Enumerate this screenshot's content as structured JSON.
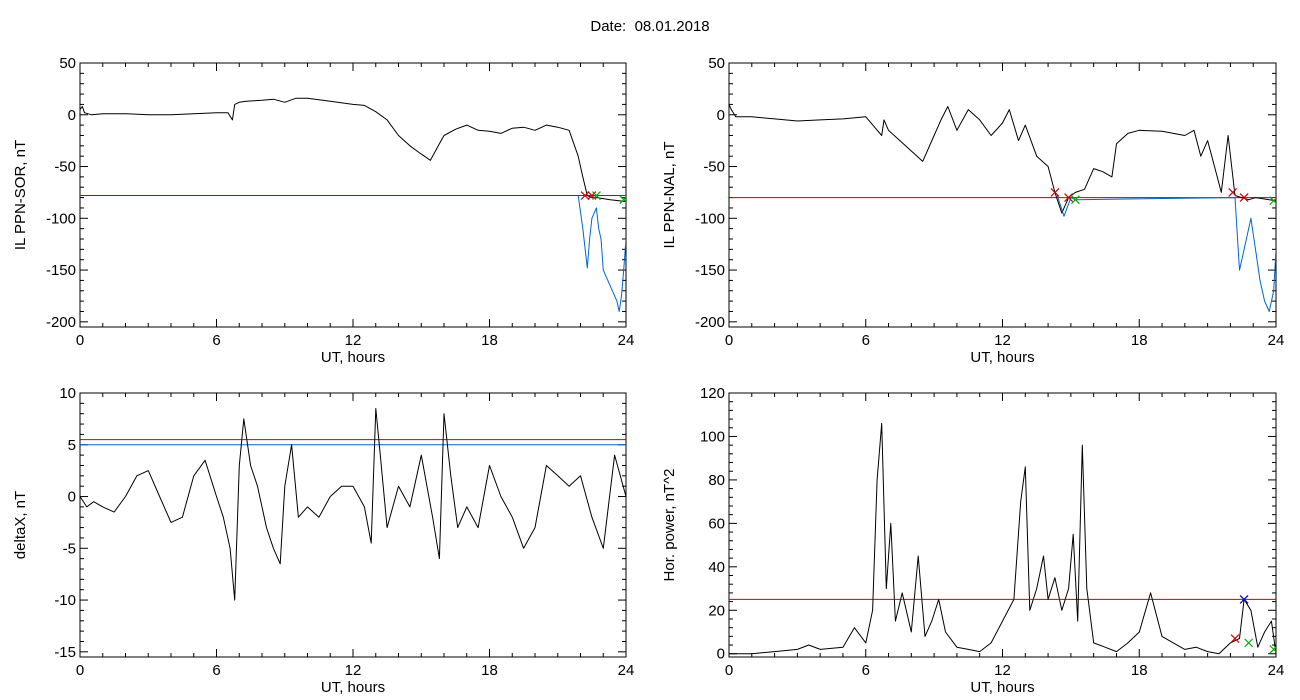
{
  "header": {
    "date_label": "Date:",
    "date_value": "08.01.2018"
  },
  "chart_data": [
    {
      "type": "line",
      "ylabel": "IL PPN-SOR, nT",
      "xlabel": "UT, hours",
      "xlim": [
        0,
        24
      ],
      "ylim": [
        -205,
        50
      ],
      "xticks": [
        0,
        6,
        12,
        18,
        24
      ],
      "yticks": [
        50,
        0,
        -50,
        -100,
        -150,
        -200
      ],
      "threshold": {
        "value": -78,
        "color": "#cc0000"
      },
      "series": [
        {
          "color": "#000000",
          "x": [
            0,
            0.1,
            0.2,
            0.5,
            1,
            2,
            3,
            4,
            5,
            6,
            6.5,
            6.7,
            6.8,
            7,
            7.3,
            8,
            8.5,
            9,
            9.5,
            10,
            11,
            12,
            12.5,
            13,
            13.5,
            14,
            14.5,
            15,
            15.4,
            15.8,
            16,
            16.5,
            17,
            17.5,
            18,
            18.5,
            19,
            19.5,
            20,
            20.5,
            21,
            21.5,
            21.9,
            22.1,
            22.3,
            22.5,
            22.7,
            23,
            23.3,
            23.7,
            24
          ],
          "y": [
            5,
            8,
            2,
            0,
            1,
            1,
            0,
            0,
            1,
            2,
            2,
            -5,
            10,
            12,
            13,
            14,
            15,
            12,
            16,
            16,
            13,
            10,
            9,
            3,
            -5,
            -20,
            -30,
            -38,
            -44,
            -28,
            -20,
            -14,
            -10,
            -15,
            -16,
            -18,
            -13,
            -12,
            -15,
            -10,
            -12,
            -15,
            -40,
            -60,
            -78,
            -80,
            -80,
            -81,
            -82,
            -83,
            -84
          ]
        },
        {
          "color": "#0066cc",
          "x": [
            21.9,
            22.1,
            22.3,
            22.4,
            22.5,
            22.7,
            22.8,
            22.9,
            23.0,
            23.2,
            23.4,
            23.6,
            23.7,
            23.8,
            23.9,
            24.0
          ],
          "y": [
            -78,
            -110,
            -148,
            -120,
            -100,
            -90,
            -110,
            -120,
            -150,
            -160,
            -170,
            -180,
            -190,
            -175,
            -150,
            -120
          ]
        }
      ],
      "markers": [
        {
          "x": 22.2,
          "y": -78,
          "color": "#cc0000"
        },
        {
          "x": 22.5,
          "y": -78,
          "color": "#cc0000"
        },
        {
          "x": 22.7,
          "y": -78,
          "color": "#00aa00"
        },
        {
          "x": 23.9,
          "y": -82,
          "color": "#00aa00"
        }
      ]
    },
    {
      "type": "line",
      "ylabel": "IL PPN-NAL, nT",
      "xlabel": "UT, hours",
      "xlim": [
        0,
        24
      ],
      "ylim": [
        -205,
        50
      ],
      "xticks": [
        0,
        6,
        12,
        18,
        24
      ],
      "yticks": [
        50,
        0,
        -50,
        -100,
        -150,
        -200
      ],
      "threshold": {
        "value": -80,
        "color": "#cc0000"
      },
      "series": [
        {
          "color": "#000000",
          "x": [
            0,
            0.1,
            0.3,
            1,
            2,
            3,
            4,
            5,
            6,
            6.7,
            6.8,
            7,
            7.5,
            8,
            8.5,
            9,
            9.3,
            9.6,
            10,
            10.5,
            11,
            11.5,
            12,
            12.3,
            12.7,
            13,
            13.5,
            14,
            14.3,
            14.6,
            14.9,
            15.2,
            15.6,
            16,
            16.4,
            16.8,
            17,
            17.5,
            18,
            19,
            19.5,
            20,
            20.4,
            20.7,
            21,
            21.3,
            21.6,
            21.9,
            22.2,
            22.5,
            22.8,
            23.1,
            23.4,
            23.7,
            24
          ],
          "y": [
            10,
            5,
            -2,
            -2,
            -4,
            -6,
            -5,
            -4,
            -2,
            -20,
            -5,
            -15,
            -25,
            -35,
            -45,
            -20,
            -5,
            8,
            -15,
            5,
            -5,
            -20,
            -8,
            5,
            -25,
            -10,
            -40,
            -50,
            -75,
            -95,
            -80,
            -75,
            -72,
            -52,
            -55,
            -60,
            -28,
            -18,
            -15,
            -16,
            -18,
            -20,
            -15,
            -40,
            -25,
            -50,
            -75,
            -20,
            -78,
            -80,
            -82,
            -80,
            -81,
            -82,
            -83
          ]
        },
        {
          "color": "#0066cc",
          "x": [
            14.4,
            14.7,
            15.0,
            15.2,
            22.2,
            22.4,
            22.7,
            22.9,
            23.1,
            23.3,
            23.5,
            23.7,
            23.9,
            24.0
          ],
          "y": [
            -78,
            -98,
            -80,
            -82,
            -80,
            -150,
            -120,
            -100,
            -130,
            -160,
            -180,
            -190,
            -170,
            -130
          ]
        }
      ],
      "markers": [
        {
          "x": 14.3,
          "y": -75,
          "color": "#cc0000"
        },
        {
          "x": 14.9,
          "y": -80,
          "color": "#cc0000"
        },
        {
          "x": 15.2,
          "y": -82,
          "color": "#00aa00"
        },
        {
          "x": 22.1,
          "y": -75,
          "color": "#cc0000"
        },
        {
          "x": 22.6,
          "y": -80,
          "color": "#cc0000"
        },
        {
          "x": 23.9,
          "y": -83,
          "color": "#00aa00"
        }
      ]
    },
    {
      "type": "line",
      "ylabel": "deltaX, nT",
      "xlabel": "UT, hours",
      "xlim": [
        0,
        24
      ],
      "ylim": [
        -15.5,
        10
      ],
      "xticks": [
        0,
        6,
        12,
        18,
        24
      ],
      "yticks": [
        10,
        5,
        0,
        -5,
        -10,
        -15
      ],
      "thresholds": [
        {
          "value": 5.5,
          "color": "#cc0000"
        },
        {
          "value": 5.0,
          "color": "#0066cc"
        }
      ],
      "series": [
        {
          "color": "#000000",
          "x": [
            0,
            0.3,
            0.6,
            1,
            1.5,
            2,
            2.5,
            3,
            3.5,
            4,
            4.5,
            5,
            5.5,
            6,
            6.3,
            6.6,
            6.8,
            7.0,
            7.2,
            7.5,
            7.8,
            8.2,
            8.5,
            8.8,
            9,
            9.3,
            9.6,
            10,
            10.5,
            11,
            11.5,
            12,
            12.5,
            12.8,
            13,
            13.2,
            13.5,
            14,
            14.5,
            15,
            15.5,
            15.8,
            16,
            16.3,
            16.6,
            17,
            17.5,
            18,
            18.5,
            19,
            19.5,
            20,
            20.5,
            21,
            21.5,
            22,
            22.5,
            23,
            23.5,
            24
          ],
          "y": [
            0,
            -1,
            -0.5,
            -1,
            -1.5,
            0,
            2,
            2.5,
            0,
            -2.5,
            -2,
            2,
            3.5,
            0,
            -2,
            -5,
            -10,
            3,
            7.5,
            3,
            1,
            -3,
            -5,
            -6.5,
            1,
            5,
            -2,
            -1,
            -2,
            0,
            1,
            1,
            -1,
            -4.5,
            8.5,
            4,
            -3,
            1,
            -1,
            4,
            -2,
            -6,
            8,
            2,
            -3,
            -1,
            -3,
            3,
            0,
            -2,
            -5,
            -3,
            3,
            2,
            1,
            2,
            -2,
            -5,
            4,
            0
          ]
        }
      ]
    },
    {
      "type": "line",
      "ylabel": "Hor. power, nT^2",
      "xlabel": "UT, hours",
      "xlim": [
        0,
        24
      ],
      "ylim": [
        -1.5,
        120
      ],
      "xticks": [
        0,
        6,
        12,
        18,
        24
      ],
      "yticks": [
        120,
        100,
        80,
        60,
        40,
        20,
        0
      ],
      "threshold": {
        "value": 25,
        "color": "#cc0000"
      },
      "series": [
        {
          "color": "#000000",
          "x": [
            0,
            1,
            2,
            3,
            3.5,
            4,
            5,
            5.5,
            6,
            6.3,
            6.5,
            6.7,
            6.9,
            7.1,
            7.3,
            7.6,
            8,
            8.3,
            8.6,
            8.9,
            9.2,
            9.5,
            10,
            10.5,
            11,
            11.5,
            12,
            12.5,
            12.8,
            13.0,
            13.2,
            13.5,
            13.8,
            14,
            14.3,
            14.6,
            14.9,
            15.1,
            15.3,
            15.5,
            15.7,
            16,
            16.5,
            17,
            17.5,
            18,
            18.5,
            19,
            19.5,
            20,
            20.5,
            21,
            21.5,
            22,
            22.4,
            22.6,
            22.9,
            23.2,
            23.5,
            23.8,
            24
          ],
          "y": [
            0,
            0,
            1,
            2,
            4,
            2,
            3,
            12,
            5,
            20,
            80,
            106,
            30,
            60,
            15,
            28,
            10,
            45,
            8,
            15,
            25,
            10,
            3,
            2,
            1,
            5,
            15,
            25,
            70,
            86,
            20,
            30,
            45,
            25,
            35,
            20,
            30,
            55,
            15,
            96,
            30,
            5,
            3,
            1,
            5,
            10,
            28,
            8,
            5,
            2,
            3,
            1,
            0,
            5,
            7,
            25,
            20,
            3,
            10,
            15,
            0
          ]
        }
      ],
      "markers": [
        {
          "x": 22.6,
          "y": 25,
          "color": "#0000cc"
        },
        {
          "x": 22.2,
          "y": 7,
          "color": "#cc0000"
        },
        {
          "x": 22.8,
          "y": 5,
          "color": "#00aa00"
        },
        {
          "x": 23.9,
          "y": 2,
          "color": "#00aa00"
        }
      ]
    }
  ]
}
